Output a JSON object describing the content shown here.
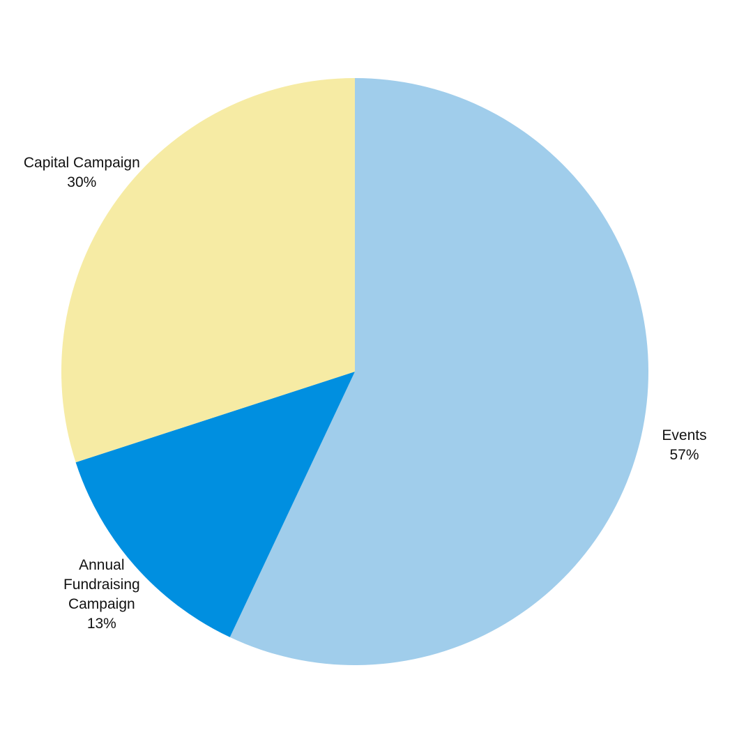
{
  "chart_data": {
    "type": "pie",
    "categories": [
      "Events",
      "Annual Fundraising Campaign",
      "Capital Campaign"
    ],
    "values": [
      57,
      13,
      30
    ],
    "value_labels": [
      "57%",
      "13%",
      "30%"
    ],
    "colors": [
      "#a0cdeb",
      "#008fe0",
      "#f6eba4"
    ]
  }
}
